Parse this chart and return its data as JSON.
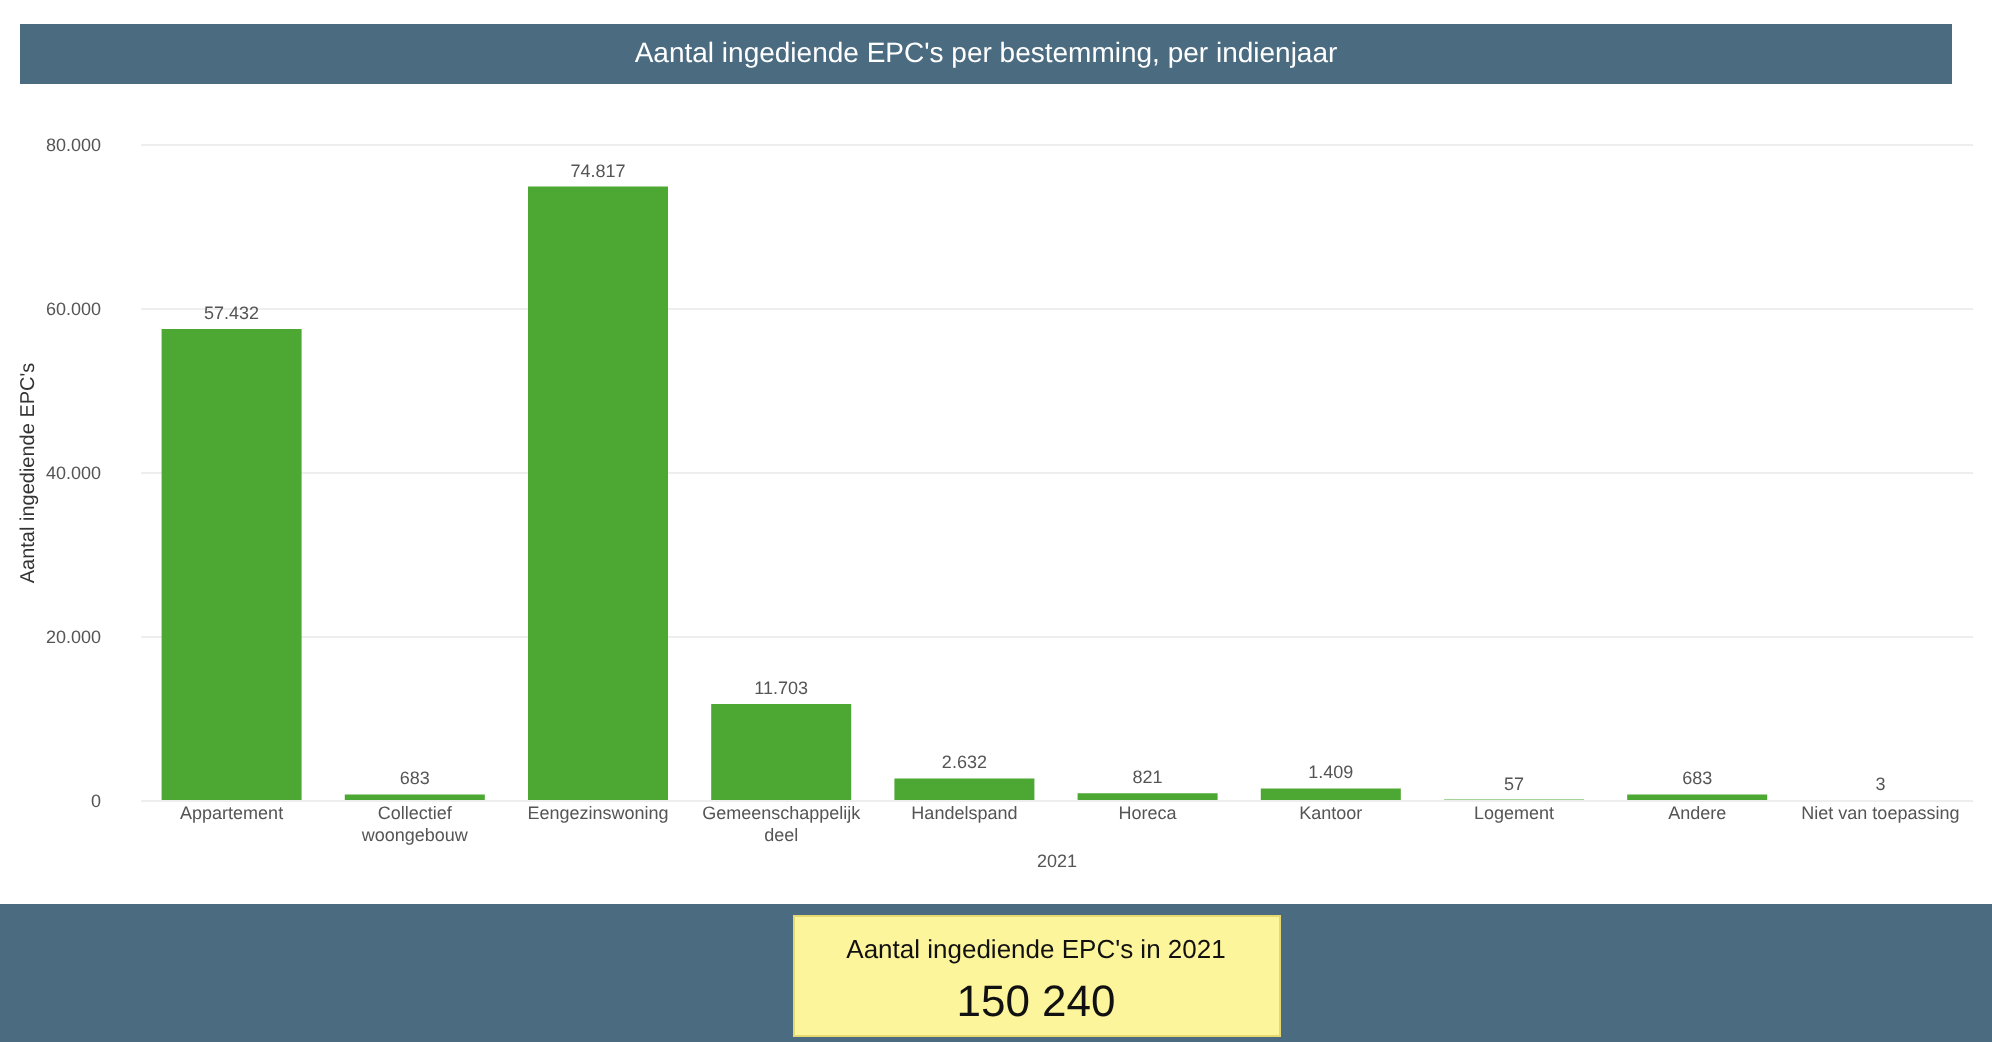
{
  "chart_data": {
    "type": "bar",
    "title": "Aantal ingediende EPC's per bestemming, per indienjaar",
    "xlabel": "2021",
    "ylabel": "Aantal ingediende EPC's",
    "categories": [
      "Appartement",
      "Collectief woongebouw",
      "Eengezinswoning",
      "Gemeenschappelijk deel",
      "Handelspand",
      "Horeca",
      "Kantoor",
      "Logement",
      "Andere",
      "Niet van toepassing"
    ],
    "values": [
      57432,
      683,
      74817,
      11703,
      2632,
      821,
      1409,
      57,
      683,
      3
    ],
    "value_labels": [
      "57.432",
      "683",
      "74.817",
      "11.703",
      "2.632",
      "821",
      "1.409",
      "57",
      "683",
      "3"
    ],
    "color": "#4ca832",
    "ylim": [
      0,
      80000
    ],
    "yticks": [
      {
        "value": 0,
        "label": "0"
      },
      {
        "value": 20000,
        "label": "20.000"
      },
      {
        "value": 40000,
        "label": "40.000"
      },
      {
        "value": 60000,
        "label": "60.000"
      },
      {
        "value": 80000,
        "label": "80.000"
      }
    ],
    "grid": "y",
    "annotations": [
      "Aantal ingediende EPC's in 2021",
      "150 240"
    ]
  }
}
